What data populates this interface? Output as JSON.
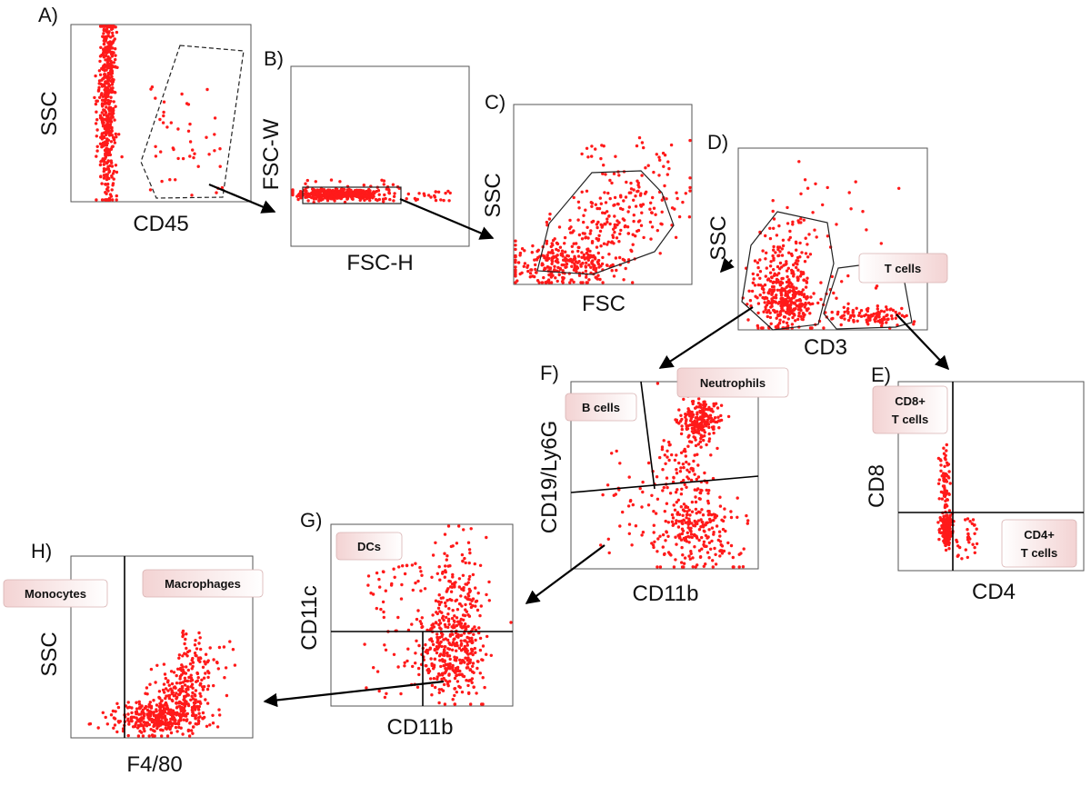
{
  "colors": {
    "dots": "#ff1a1a",
    "box_fill_left": "#f4d6d6",
    "box_fill_right": "#ffffff"
  },
  "panels": {
    "A": {
      "letter": "A)",
      "xlabel": "CD45",
      "ylabel": "SSC"
    },
    "B": {
      "letter": "B)",
      "xlabel": "FSC-H",
      "ylabel": "FSC-W"
    },
    "C": {
      "letter": "C)",
      "xlabel": "FSC",
      "ylabel": "SSC"
    },
    "D": {
      "letter": "D)",
      "xlabel": "CD3",
      "ylabel": "SSC",
      "populations": [
        "T cells"
      ]
    },
    "E": {
      "letter": "E)",
      "xlabel": "CD4",
      "ylabel": "CD8",
      "populations": [
        "CD8+",
        "T cells",
        "CD4+",
        "T cells"
      ]
    },
    "F": {
      "letter": "F)",
      "xlabel": "CD11b",
      "ylabel": "CD19/Ly6G",
      "populations": [
        "B cells",
        "Neutrophils"
      ]
    },
    "G": {
      "letter": "G)",
      "xlabel": "CD11b",
      "ylabel": "CD11c",
      "populations": [
        "DCs"
      ]
    },
    "H": {
      "letter": "H)",
      "xlabel": "F4/80",
      "ylabel": "SSC",
      "populations": [
        "Monocytes",
        "Macrophages"
      ]
    }
  }
}
